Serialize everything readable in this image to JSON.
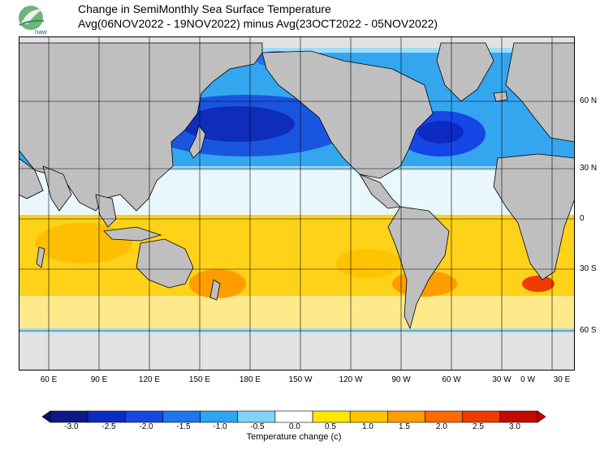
{
  "header": {
    "logo_text": "naw",
    "title_line1": "Change in SemiMonthly Sea Surface Temperature",
    "title_line2": "Avg(06NOV2022 - 19NOV2022) minus Avg(23OCT2022 - 05NOV2022)"
  },
  "map": {
    "lat_labels": [
      "60 N",
      "30 N",
      "0",
      "30 S",
      "60 S"
    ],
    "lon_labels": [
      "60 E",
      "90 E",
      "120 E",
      "150 E",
      "180 E",
      "150 W",
      "120 W",
      "90 W",
      "60 W",
      "30 W",
      "0 W",
      "30 E"
    ],
    "land_color": "#bfbfbf",
    "ice_color": "#e2e2e2"
  },
  "colorbar": {
    "title": "Temperature change  (c)",
    "tick_labels": [
      "-3.0",
      "-2.5",
      "-2.0",
      "-1.5",
      "-1.0",
      "-0.5",
      "0.0",
      "0.5",
      "1.0",
      "1.5",
      "2.0",
      "2.5",
      "3.0"
    ],
    "colors": [
      "#0b1a85",
      "#0d2bc4",
      "#1646e6",
      "#1d76f0",
      "#2aa6f2",
      "#7fd4f8",
      "#ffffff",
      "#ffe600",
      "#ffc400",
      "#ff9d00",
      "#ff6a00",
      "#ef3b00",
      "#c40a00"
    ],
    "under_color": "#061466",
    "over_color": "#c80000"
  }
}
